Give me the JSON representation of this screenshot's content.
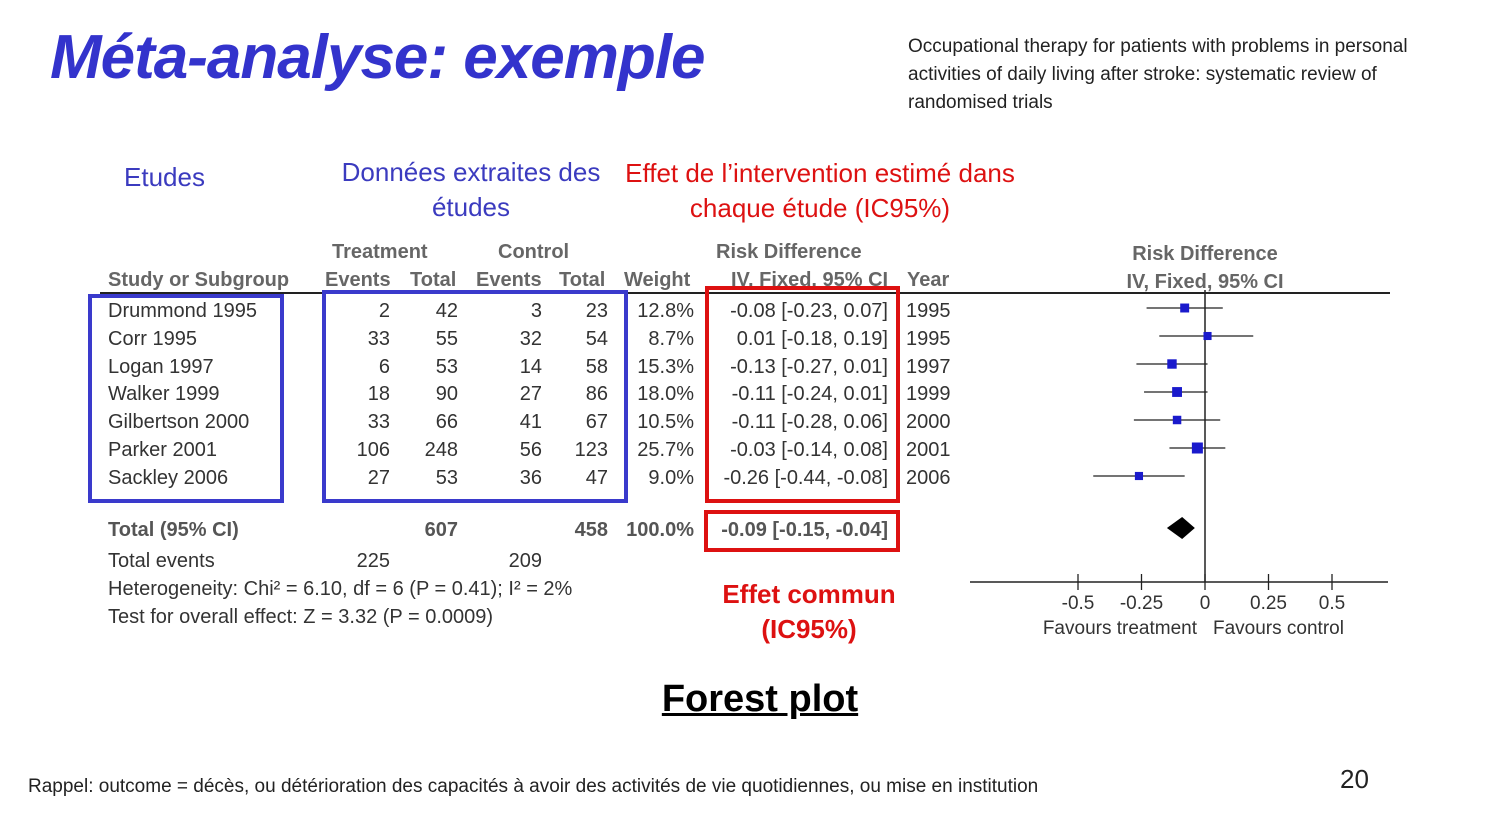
{
  "slide": {
    "title": "Méta-analyse: exemple",
    "reference_title": "Occupational therapy for patients with problems in personal activities of daily living after stroke: systematic review of randomised trials",
    "annotations": {
      "studies": "Etudes",
      "extracted_data": "Données extraites des études",
      "intervention_effect": "Effet de l’intervention estimé dans chaque étude (IC95%)",
      "common_effect": "Effet commun (IC95%)"
    },
    "caption": "Forest plot",
    "footnote": "Rappel: outcome = décès, ou détérioration des capacités à avoir des activités de vie quotidiennes, ou mise en institution",
    "page_number": "20"
  },
  "table": {
    "group_headers": {
      "treatment": "Treatment",
      "control": "Control",
      "risk_difference": "Risk Difference"
    },
    "column_headers": {
      "study": "Study or Subgroup",
      "t_events": "Events",
      "t_total": "Total",
      "c_events": "Events",
      "c_total": "Total",
      "weight": "Weight",
      "rd": "IV, Fixed, 95% CI",
      "year": "Year"
    },
    "rows": [
      {
        "study": "Drummond 1995",
        "t_events": "2",
        "t_total": "42",
        "c_events": "3",
        "c_total": "23",
        "weight": "12.8%",
        "ci": "-0.08 [-0.23, 0.07]",
        "year": "1995"
      },
      {
        "study": "Corr 1995",
        "t_events": "33",
        "t_total": "55",
        "c_events": "32",
        "c_total": "54",
        "weight": "8.7%",
        "ci": "0.01 [-0.18, 0.19]",
        "year": "1995"
      },
      {
        "study": "Logan 1997",
        "t_events": "6",
        "t_total": "53",
        "c_events": "14",
        "c_total": "58",
        "weight": "15.3%",
        "ci": "-0.13 [-0.27, 0.01]",
        "year": "1997"
      },
      {
        "study": "Walker 1999",
        "t_events": "18",
        "t_total": "90",
        "c_events": "27",
        "c_total": "86",
        "weight": "18.0%",
        "ci": "-0.11 [-0.24, 0.01]",
        "year": "1999"
      },
      {
        "study": "Gilbertson 2000",
        "t_events": "33",
        "t_total": "66",
        "c_events": "41",
        "c_total": "67",
        "weight": "10.5%",
        "ci": "-0.11 [-0.28, 0.06]",
        "year": "2000"
      },
      {
        "study": "Parker 2001",
        "t_events": "106",
        "t_total": "248",
        "c_events": "56",
        "c_total": "123",
        "weight": "25.7%",
        "ci": "-0.03 [-0.14, 0.08]",
        "year": "2001"
      },
      {
        "study": "Sackley 2006",
        "t_events": "27",
        "t_total": "53",
        "c_events": "36",
        "c_total": "47",
        "weight": "9.0%",
        "ci": "-0.26 [-0.44, -0.08]",
        "year": "2006"
      }
    ],
    "total": {
      "label": "Total (95% CI)",
      "t_total": "607",
      "c_total": "458",
      "weight": "100.0%",
      "ci": "-0.09 [-0.15, -0.04]"
    },
    "total_events": {
      "label": "Total events",
      "t_events": "225",
      "c_events": "209"
    },
    "heterogeneity": "Heterogeneity: Chi² = 6.10, df = 6 (P = 0.41); I² = 2%",
    "overall_test": "Test for overall effect: Z = 3.32 (P = 0.0009)"
  },
  "chart_data": {
    "type": "scatter",
    "subtype": "forest",
    "title": "Risk Difference",
    "subtitle": "IV, Fixed, 95% CI",
    "xlim": [
      -0.5,
      0.5
    ],
    "x_ticks": [
      -0.5,
      -0.25,
      0,
      0.25,
      0.5
    ],
    "x_tick_labels": [
      "-0.5",
      "-0.25",
      "0",
      "0.25",
      "0.5"
    ],
    "x_labels": {
      "left": "Favours treatment",
      "right": "Favours control"
    },
    "studies": [
      {
        "name": "Drummond 1995",
        "estimate": -0.08,
        "lower": -0.23,
        "upper": 0.07,
        "weight": 12.8
      },
      {
        "name": "Corr 1995",
        "estimate": 0.01,
        "lower": -0.18,
        "upper": 0.19,
        "weight": 8.7
      },
      {
        "name": "Logan 1997",
        "estimate": -0.13,
        "lower": -0.27,
        "upper": 0.01,
        "weight": 15.3
      },
      {
        "name": "Walker 1999",
        "estimate": -0.11,
        "lower": -0.24,
        "upper": 0.01,
        "weight": 18.0
      },
      {
        "name": "Gilbertson 2000",
        "estimate": -0.11,
        "lower": -0.28,
        "upper": 0.06,
        "weight": 10.5
      },
      {
        "name": "Parker 2001",
        "estimate": -0.03,
        "lower": -0.14,
        "upper": 0.08,
        "weight": 25.7
      },
      {
        "name": "Sackley 2006",
        "estimate": -0.26,
        "lower": -0.44,
        "upper": -0.08,
        "weight": 9.0
      }
    ],
    "pooled": {
      "estimate": -0.09,
      "lower": -0.15,
      "upper": -0.04
    },
    "colors": {
      "marker": "#1a1acc",
      "line": "#222222"
    }
  }
}
